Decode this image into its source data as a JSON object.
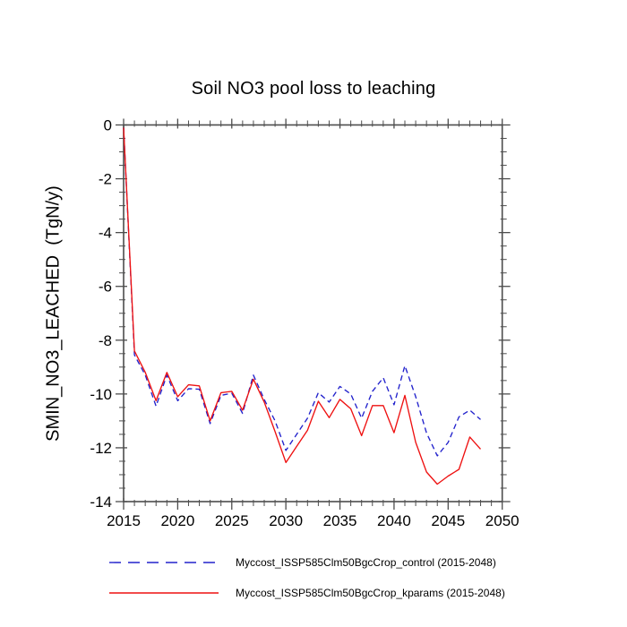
{
  "window": {
    "background": "#ffffff"
  },
  "chart_data": {
    "type": "line",
    "title": "Soil NO3 pool loss to leaching",
    "xlabel": "",
    "ylabel": "SMIN_NO3_LEACHED  (TgN/y)",
    "xlim": [
      2015,
      2050
    ],
    "ylim": [
      0,
      -14
    ],
    "grid": false,
    "legend_position": "bottom",
    "x_major_ticks": [
      2015,
      2020,
      2025,
      2030,
      2035,
      2040,
      2045,
      2050
    ],
    "x_tick_labels": [
      "2015",
      "2020",
      "2025",
      "2030",
      "2035",
      "2040",
      "2045",
      "2050"
    ],
    "x_minor_step": 1,
    "y_major_ticks": [
      0,
      -2,
      -4,
      -6,
      -8,
      -10,
      -12,
      -14
    ],
    "y_tick_labels": [
      "0",
      "-2",
      "-4",
      "-6",
      "-8",
      "-10",
      "-12",
      "-14"
    ],
    "y_minor_step": 0.5,
    "x": [
      2015,
      2016,
      2017,
      2018,
      2019,
      2020,
      2021,
      2022,
      2023,
      2024,
      2025,
      2026,
      2027,
      2028,
      2029,
      2030,
      2031,
      2032,
      2033,
      2034,
      2035,
      2036,
      2037,
      2038,
      2039,
      2040,
      2041,
      2042,
      2043,
      2044,
      2045,
      2046,
      2047,
      2048
    ],
    "series": [
      {
        "name": "Myccost_ISSP585Clm50BgcCrop_control (2015-2048)",
        "color": "#2222cc",
        "style": "dashed",
        "values": [
          -0.1,
          -8.55,
          -9.3,
          -10.45,
          -9.3,
          -10.25,
          -9.8,
          -9.82,
          -11.1,
          -10.05,
          -9.97,
          -10.72,
          -9.3,
          -10.2,
          -11.0,
          -12.1,
          -11.5,
          -10.9,
          -9.95,
          -10.3,
          -9.72,
          -10.0,
          -10.9,
          -9.9,
          -9.4,
          -10.4,
          -8.95,
          -10.1,
          -11.45,
          -12.3,
          -11.8,
          -10.85,
          -10.6,
          -10.95
        ]
      },
      {
        "name": "Myccost_ISSP585Clm50BgcCrop_kparams (2015-2048)",
        "color": "#ee1111",
        "style": "solid",
        "values": [
          -0.1,
          -8.4,
          -9.2,
          -10.25,
          -9.2,
          -10.1,
          -9.66,
          -9.7,
          -11.0,
          -9.95,
          -9.9,
          -10.6,
          -9.45,
          -10.3,
          -11.4,
          -12.55,
          -11.95,
          -11.35,
          -10.27,
          -10.88,
          -10.2,
          -10.55,
          -11.55,
          -10.43,
          -10.43,
          -11.44,
          -10.05,
          -11.8,
          -12.9,
          -13.35,
          -13.05,
          -12.8,
          -11.6,
          -12.05
        ]
      }
    ]
  },
  "colors": {
    "axis": "#4d4d4d",
    "text": "#000000"
  }
}
